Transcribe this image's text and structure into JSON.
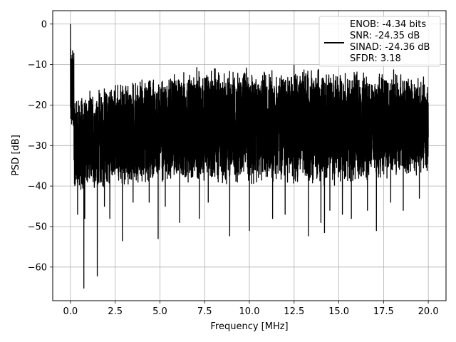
{
  "chart_data": {
    "type": "line",
    "title": "",
    "xlabel": "Frequency [MHz]",
    "ylabel": "PSD [dB]",
    "xlim": [
      -0.99,
      20.99
    ],
    "ylim": [
      -68.3,
      3.3
    ],
    "grid": true,
    "x_ticks": [
      0.0,
      2.5,
      5.0,
      7.5,
      10.0,
      12.5,
      15.0,
      17.5,
      20.0
    ],
    "x_tick_labels": [
      "0.0",
      "2.5",
      "5.0",
      "7.5",
      "10.0",
      "12.5",
      "15.0",
      "17.5",
      "20.0"
    ],
    "y_ticks": [
      0,
      -10,
      -20,
      -30,
      -40,
      -50,
      -60
    ],
    "y_tick_labels": [
      "0",
      "−10",
      "−20",
      "−30",
      "−40",
      "−50",
      "−60"
    ],
    "legend": {
      "placement": "top-right",
      "entries": [
        "ENOB: -4.34 bits",
        "SNR: -24.35 dB",
        "SINAD: -24.36 dB",
        "SFDR: 3.18"
      ]
    },
    "series": [
      {
        "color": "#000000",
        "x_range": [
          0.0,
          20.0
        ],
        "points": 6000,
        "peak": {
          "x": 0.0,
          "y": 0.0
        },
        "dc_region": {
          "x": [
            0.0,
            0.2
          ],
          "y": [
            -27,
            -6
          ]
        },
        "typical_max_envelope": [
          [
            0.5,
            -17
          ],
          [
            2.5,
            -14
          ],
          [
            5.0,
            -12
          ],
          [
            7.5,
            -10
          ],
          [
            10.0,
            -10
          ],
          [
            12.5,
            -10
          ],
          [
            15.0,
            -11
          ],
          [
            17.5,
            -11
          ],
          [
            20.0,
            -12
          ]
        ],
        "typical_min_envelope": [
          [
            0.5,
            -42
          ],
          [
            5.0,
            -40
          ],
          [
            10.0,
            -40
          ],
          [
            15.0,
            -40
          ],
          [
            20.0,
            -38
          ]
        ],
        "deep_nulls": [
          {
            "x": 0.75,
            "y": -65.2
          },
          {
            "x": 1.5,
            "y": -62.2
          },
          {
            "x": 0.8,
            "y": -48
          },
          {
            "x": 0.4,
            "y": -47
          },
          {
            "x": 1.9,
            "y": -45
          },
          {
            "x": 2.2,
            "y": -48
          },
          {
            "x": 2.9,
            "y": -53.5
          },
          {
            "x": 3.5,
            "y": -44
          },
          {
            "x": 4.4,
            "y": -44
          },
          {
            "x": 4.9,
            "y": -53
          },
          {
            "x": 5.3,
            "y": -45
          },
          {
            "x": 6.1,
            "y": -49
          },
          {
            "x": 7.2,
            "y": -48
          },
          {
            "x": 7.7,
            "y": -44
          },
          {
            "x": 8.9,
            "y": -52.3
          },
          {
            "x": 10.0,
            "y": -51
          },
          {
            "x": 11.3,
            "y": -48
          },
          {
            "x": 12.0,
            "y": -47
          },
          {
            "x": 13.3,
            "y": -52.3
          },
          {
            "x": 14.0,
            "y": -49
          },
          {
            "x": 14.2,
            "y": -51.5
          },
          {
            "x": 14.5,
            "y": -46
          },
          {
            "x": 15.2,
            "y": -47
          },
          {
            "x": 15.7,
            "y": -48
          },
          {
            "x": 16.6,
            "y": -46
          },
          {
            "x": 17.1,
            "y": -51
          },
          {
            "x": 17.9,
            "y": -44
          },
          {
            "x": 18.6,
            "y": -46
          },
          {
            "x": 19.5,
            "y": -43
          }
        ]
      }
    ]
  }
}
